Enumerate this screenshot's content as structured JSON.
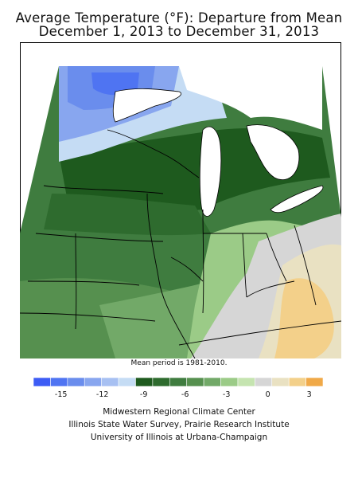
{
  "title": {
    "line1": "Average Temperature (°F): Departure from Mean",
    "line2": "December 1, 2013 to December 31, 2013"
  },
  "mean_note": "Mean period is 1981-2010.",
  "legend": {
    "colors": [
      "#3d5cf5",
      "#4f74f2",
      "#6a8ded",
      "#88a6ef",
      "#a7c0f2",
      "#c5dcf4",
      "#1e5a1e",
      "#2e6b2e",
      "#3f7c3f",
      "#56904f",
      "#72a968",
      "#9bcb87",
      "#c5e4b0",
      "#d6d6d6",
      "#e9e1c2",
      "#f3d08a",
      "#f0a948"
    ],
    "tick_labels": [
      "-15",
      "-12",
      "-9",
      "-6",
      "-3",
      "0",
      "3"
    ],
    "tick_values": [
      -15,
      -12,
      -9,
      -6,
      -3,
      0,
      3
    ],
    "min": -17,
    "max": 4
  },
  "map": {
    "region": "Midwest United States",
    "variable": "Temperature departure from mean (°F)"
  },
  "footer": {
    "line1": "Midwestern Regional Climate Center",
    "line2": "Illinois State Water Survey, Prairie Research Institute",
    "line3": "University of Illinois at Urbana-Champaign"
  }
}
